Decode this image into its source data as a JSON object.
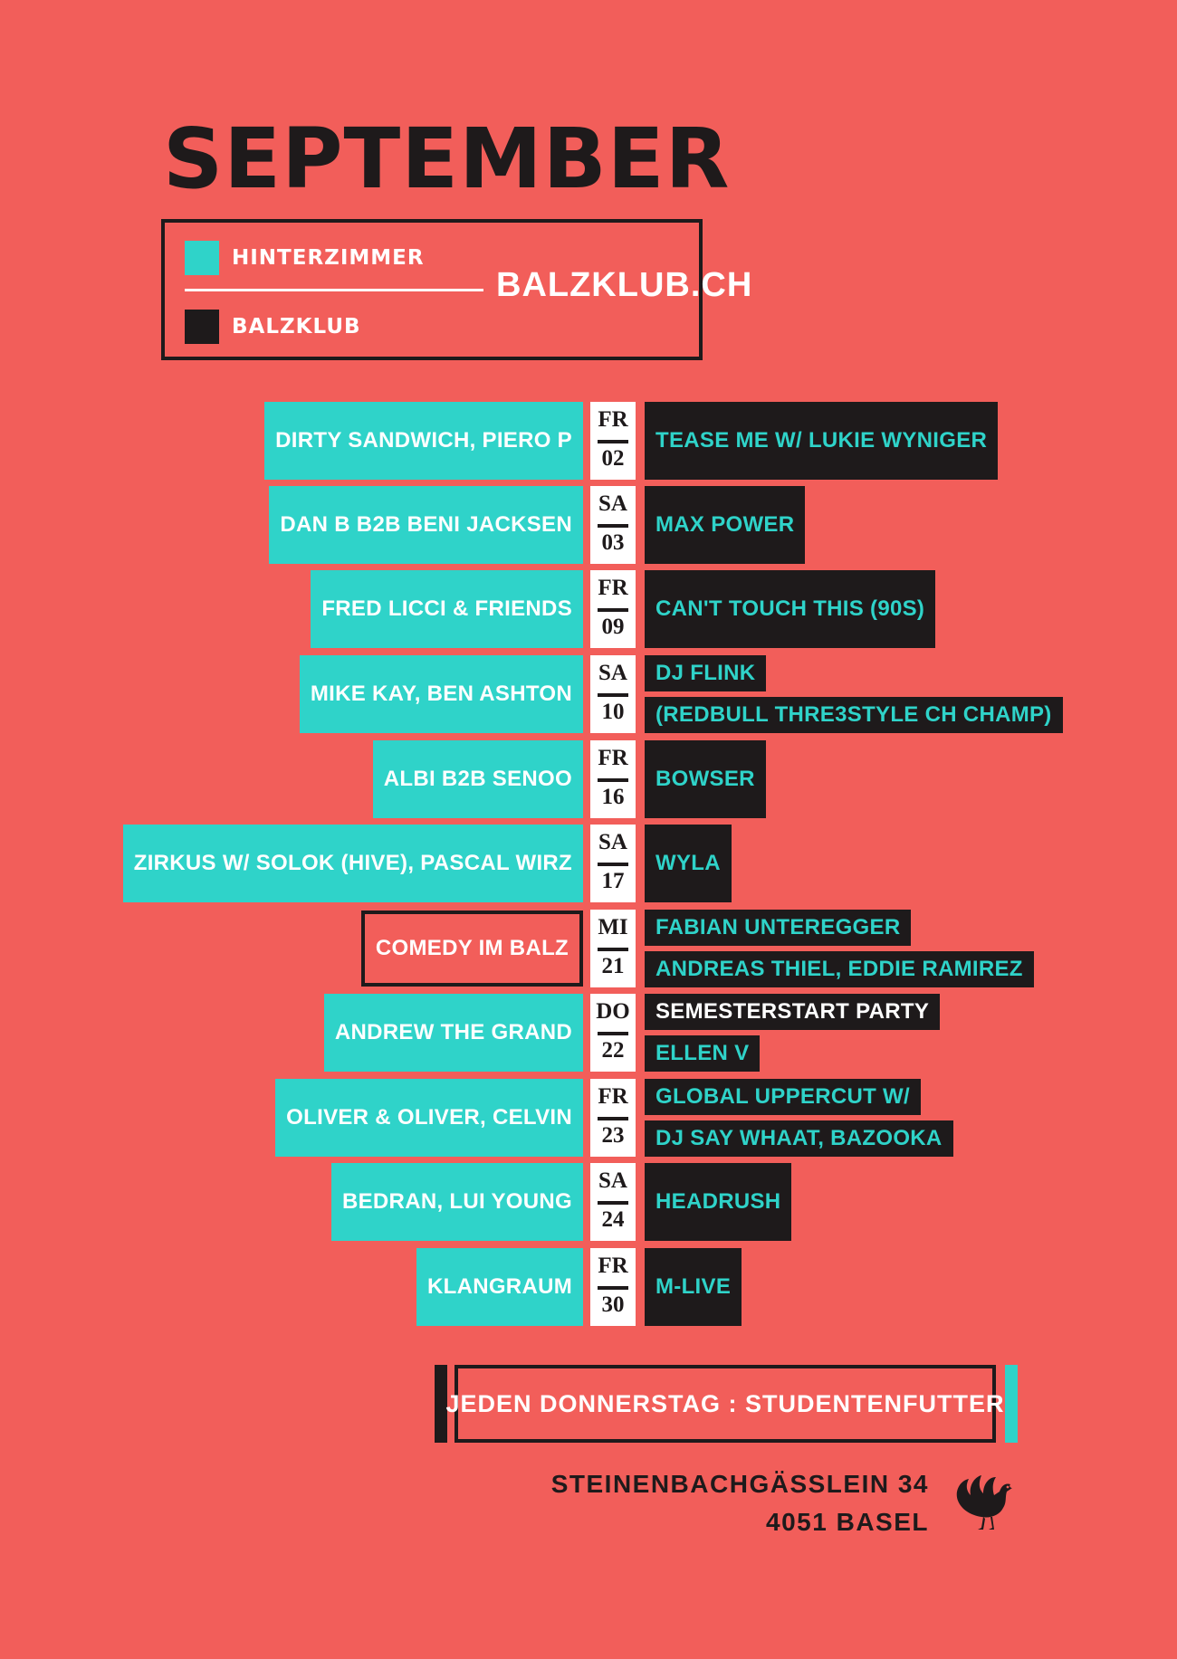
{
  "title": "SEPTEMBER",
  "legend": {
    "items": [
      {
        "label": "HINTERZIMMER",
        "color": "#2fd3c9"
      },
      {
        "label": "BALZKLUB",
        "color": "#1e1a1b"
      }
    ],
    "website": "BALZKLUB.CH"
  },
  "colors": {
    "background": "#f25e5a",
    "hinterzimmer": "#2fd3c9",
    "balzklub": "#1e1a1b",
    "date": "#ffffff"
  },
  "events": [
    {
      "day": "FR",
      "date": "02",
      "hinterzimmer": "DIRTY SANDWICH, PIERO P",
      "balzklub": [
        "TEASE ME W/ LUKIE WYNIGER"
      ]
    },
    {
      "day": "SA",
      "date": "03",
      "hinterzimmer": "DAN B B2B BENI JACKSEN",
      "balzklub": [
        "MAX POWER"
      ]
    },
    {
      "day": "FR",
      "date": "09",
      "hinterzimmer": "FRED LICCI & FRIENDS",
      "balzklub": [
        "CAN'T TOUCH THIS (90S)"
      ]
    },
    {
      "day": "SA",
      "date": "10",
      "hinterzimmer": "MIKE KAY, BEN ASHTON",
      "balzklub": [
        "DJ FLINK",
        "(REDBULL THRE3STYLE CH CHAMP)"
      ]
    },
    {
      "day": "FR",
      "date": "16",
      "hinterzimmer": "ALBI B2B SENOO",
      "balzklub": [
        "BOWSER"
      ]
    },
    {
      "day": "SA",
      "date": "17",
      "hinterzimmer": "ZIRKUS W/ SOLOK (HIVE), PASCAL WIRZ",
      "balzklub": [
        "WYLA"
      ]
    },
    {
      "day": "MI",
      "date": "21",
      "hinterzimmer": "COMEDY IM BALZ",
      "balzklub": [
        "FABIAN UNTEREGGER",
        "ANDREAS THIEL, EDDIE RAMIREZ"
      ]
    },
    {
      "day": "DO",
      "date": "22",
      "hinterzimmer": "ANDREW THE GRAND",
      "balzklub": [
        "SEMESTERSTART PARTY",
        "ELLEN V"
      ]
    },
    {
      "day": "FR",
      "date": "23",
      "hinterzimmer": "OLIVER & OLIVER, CELVIN",
      "balzklub": [
        "GLOBAL UPPERCUT W/",
        "DJ SAY WHAAT, BAZOOKA"
      ]
    },
    {
      "day": "SA",
      "date": "24",
      "hinterzimmer": "BEDRAN, LUI YOUNG",
      "balzklub": [
        "HEADRUSH"
      ]
    },
    {
      "day": "FR",
      "date": "30",
      "hinterzimmer": "KLANGRAUM",
      "balzklub": [
        "M-LIVE"
      ]
    }
  ],
  "footer": {
    "weekly": "JEDEN DONNERSTAG : STUDENTENFUTTER",
    "address_line1": "STEINENBACHGÄSSLEIN 34",
    "address_line2": "4051 BASEL",
    "logo_icon": "capercaillie-bird-icon"
  }
}
